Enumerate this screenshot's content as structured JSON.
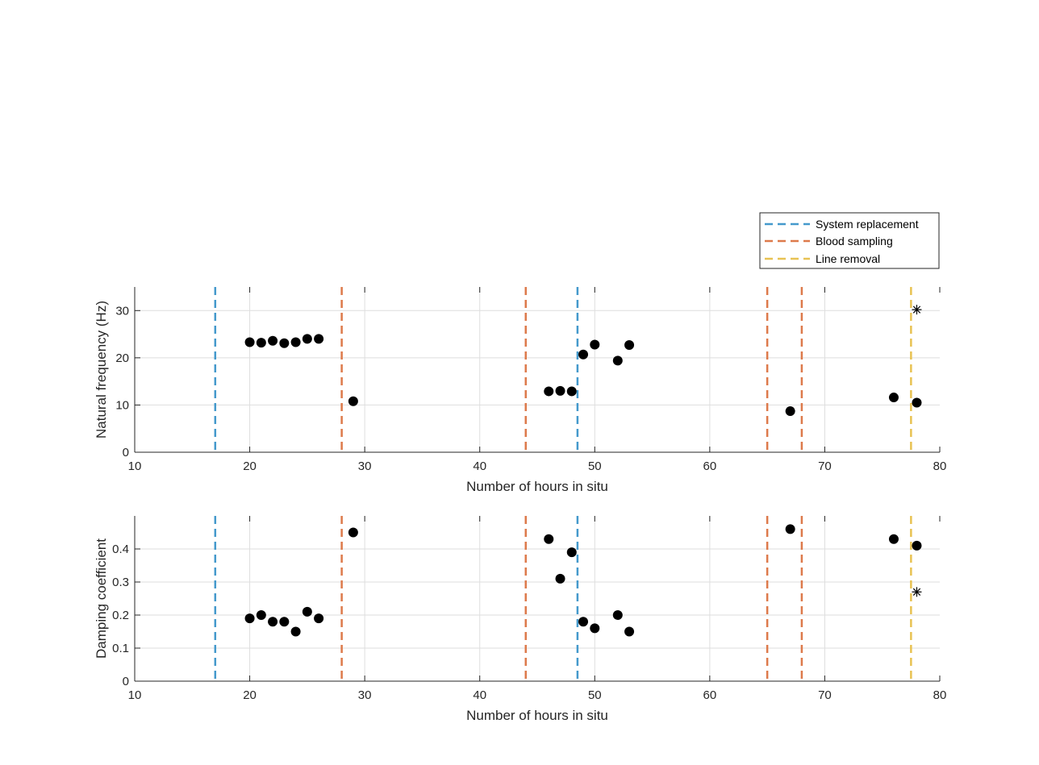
{
  "colors": {
    "System replacement": "#4499cc",
    "Blood sampling": "#dd7a4b",
    "Line removal": "#e8c253",
    "points": "#000000",
    "grid": "#dedede",
    "axis": "#262626"
  },
  "legend": {
    "placement": "top-right",
    "entries": [
      "System replacement",
      "Blood sampling",
      "Line removal"
    ]
  },
  "chart_data": [
    {
      "type": "scatter",
      "title": "",
      "xlabel": "Number of hours in situ",
      "ylabel": "Natural frequency (Hz)",
      "xlim": [
        10,
        80
      ],
      "ylim": [
        0,
        35
      ],
      "xticks": [
        10,
        20,
        30,
        40,
        50,
        60,
        70,
        80
      ],
      "yticks": [
        0,
        10,
        20,
        30
      ],
      "grid": true,
      "series": [
        {
          "marker": "dot",
          "x": [
            20,
            21,
            22,
            23,
            24,
            25,
            26,
            29,
            46,
            47,
            48,
            49,
            50,
            52,
            53,
            67,
            76,
            78
          ],
          "y": [
            23.3,
            23.2,
            23.6,
            23.1,
            23.3,
            24.0,
            24.0,
            10.8,
            12.9,
            13.0,
            12.9,
            20.7,
            22.8,
            19.4,
            22.7,
            8.7,
            11.6,
            10.5
          ]
        },
        {
          "marker": "asterisk",
          "x": [
            78
          ],
          "y": [
            30.2
          ]
        }
      ],
      "vlines": [
        {
          "x": 17,
          "event": "System replacement"
        },
        {
          "x": 28,
          "event": "Blood sampling"
        },
        {
          "x": 44,
          "event": "Blood sampling"
        },
        {
          "x": 48.5,
          "event": "System replacement"
        },
        {
          "x": 65,
          "event": "Blood sampling"
        },
        {
          "x": 68,
          "event": "Blood sampling"
        },
        {
          "x": 77.5,
          "event": "Line removal"
        }
      ]
    },
    {
      "type": "scatter",
      "title": "",
      "xlabel": "Number of hours in situ",
      "ylabel": "Damping coefficient",
      "xlim": [
        10,
        80
      ],
      "ylim": [
        0,
        0.5
      ],
      "xticks": [
        10,
        20,
        30,
        40,
        50,
        60,
        70,
        80
      ],
      "yticks": [
        0,
        0.1,
        0.2,
        0.3,
        0.4
      ],
      "grid": true,
      "series": [
        {
          "marker": "dot",
          "x": [
            20,
            21,
            22,
            23,
            24,
            25,
            26,
            29,
            46,
            47,
            48,
            49,
            50,
            52,
            53,
            67,
            76,
            78
          ],
          "y": [
            0.19,
            0.2,
            0.18,
            0.18,
            0.15,
            0.21,
            0.19,
            0.45,
            0.43,
            0.31,
            0.39,
            0.18,
            0.16,
            0.2,
            0.15,
            0.46,
            0.43,
            0.41
          ]
        },
        {
          "marker": "asterisk",
          "x": [
            78
          ],
          "y": [
            0.27
          ]
        }
      ],
      "vlines": [
        {
          "x": 17,
          "event": "System replacement"
        },
        {
          "x": 28,
          "event": "Blood sampling"
        },
        {
          "x": 44,
          "event": "Blood sampling"
        },
        {
          "x": 48.5,
          "event": "System replacement"
        },
        {
          "x": 65,
          "event": "Blood sampling"
        },
        {
          "x": 68,
          "event": "Blood sampling"
        },
        {
          "x": 77.5,
          "event": "Line removal"
        }
      ]
    }
  ]
}
